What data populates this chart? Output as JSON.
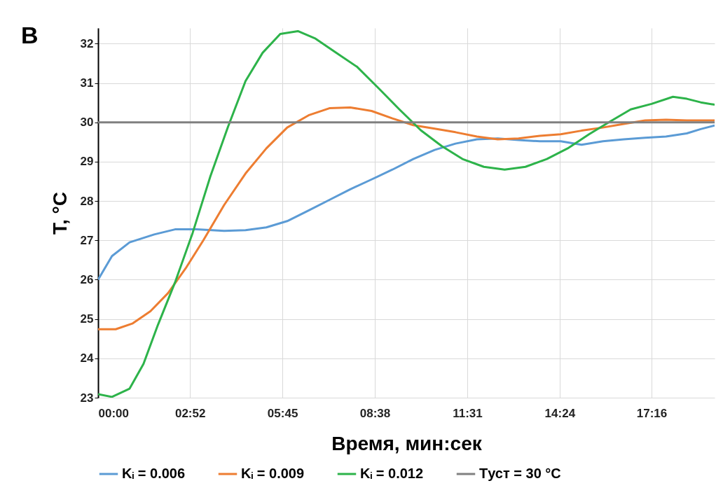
{
  "chart_data": {
    "type": "line",
    "xlabel": "Время, мин:сек",
    "ylabel": "T, °C",
    "annotations": [
      "В"
    ],
    "xlim": [
      0,
      1154
    ],
    "ylim": [
      23,
      32.4
    ],
    "xticks": [
      {
        "value": 0,
        "label": "00:00"
      },
      {
        "value": 172,
        "label": "02:52"
      },
      {
        "value": 345,
        "label": "05:45"
      },
      {
        "value": 518,
        "label": "08:38"
      },
      {
        "value": 691,
        "label": "11:31"
      },
      {
        "value": 864,
        "label": "14:24"
      },
      {
        "value": 1036,
        "label": "17:16"
      }
    ],
    "yticks": [
      23,
      24,
      25,
      26,
      27,
      28,
      29,
      30,
      31,
      32
    ],
    "grid": true,
    "legend": "bottom",
    "marker": "none",
    "line_style": "solid",
    "series": [
      {
        "name": "Kᵢ = 0.006",
        "color": "#5b9bd5",
        "x": [
          0,
          26,
          59,
          105,
          144,
          184,
          236,
          276,
          315,
          354,
          394,
          433,
          472,
          512,
          551,
          590,
          630,
          669,
          709,
          748,
          787,
          827,
          866,
          905,
          945,
          984,
          1024,
          1063,
          1102,
          1128,
          1154
        ],
        "values": [
          26.0,
          26.6,
          26.95,
          27.15,
          27.28,
          27.28,
          27.24,
          27.26,
          27.33,
          27.49,
          27.76,
          28.03,
          28.3,
          28.55,
          28.8,
          29.07,
          29.3,
          29.46,
          29.57,
          29.59,
          29.55,
          29.52,
          29.52,
          29.43,
          29.52,
          29.57,
          29.61,
          29.64,
          29.72,
          29.83,
          29.92
        ]
      },
      {
        "name": "Kᵢ = 0.009",
        "color": "#ed7d31",
        "x": [
          0,
          33,
          65,
          98,
          131,
          164,
          197,
          236,
          276,
          315,
          354,
          394,
          433,
          472,
          512,
          551,
          590,
          630,
          669,
          709,
          748,
          787,
          827,
          866,
          905,
          945,
          984,
          1024,
          1063,
          1102,
          1154
        ],
        "values": [
          24.74,
          24.74,
          24.89,
          25.2,
          25.66,
          26.29,
          27.0,
          27.9,
          28.7,
          29.34,
          29.87,
          30.18,
          30.36,
          30.38,
          30.29,
          30.1,
          29.93,
          29.84,
          29.75,
          29.64,
          29.57,
          29.59,
          29.66,
          29.7,
          29.79,
          29.87,
          29.96,
          30.05,
          30.07,
          30.05,
          30.05
        ]
      },
      {
        "name": "Kᵢ = 0.012",
        "color": "#2db34a",
        "x": [
          0,
          26,
          59,
          85,
          112,
          144,
          177,
          210,
          243,
          276,
          308,
          341,
          374,
          407,
          446,
          485,
          525,
          564,
          604,
          643,
          682,
          722,
          761,
          800,
          840,
          879,
          919,
          958,
          997,
          1036,
          1076,
          1102,
          1128,
          1154
        ],
        "values": [
          23.09,
          23.02,
          23.23,
          23.86,
          24.85,
          25.93,
          27.19,
          28.62,
          29.88,
          31.05,
          31.77,
          32.25,
          32.32,
          32.13,
          31.77,
          31.41,
          30.87,
          30.33,
          29.8,
          29.4,
          29.07,
          28.87,
          28.8,
          28.87,
          29.07,
          29.34,
          29.7,
          30.02,
          30.33,
          30.47,
          30.65,
          30.6,
          30.51,
          30.45
        ]
      },
      {
        "name": "Tуст = 30 °C",
        "color": "#808080",
        "x": [
          0,
          1154
        ],
        "values": [
          30,
          30
        ]
      }
    ]
  }
}
